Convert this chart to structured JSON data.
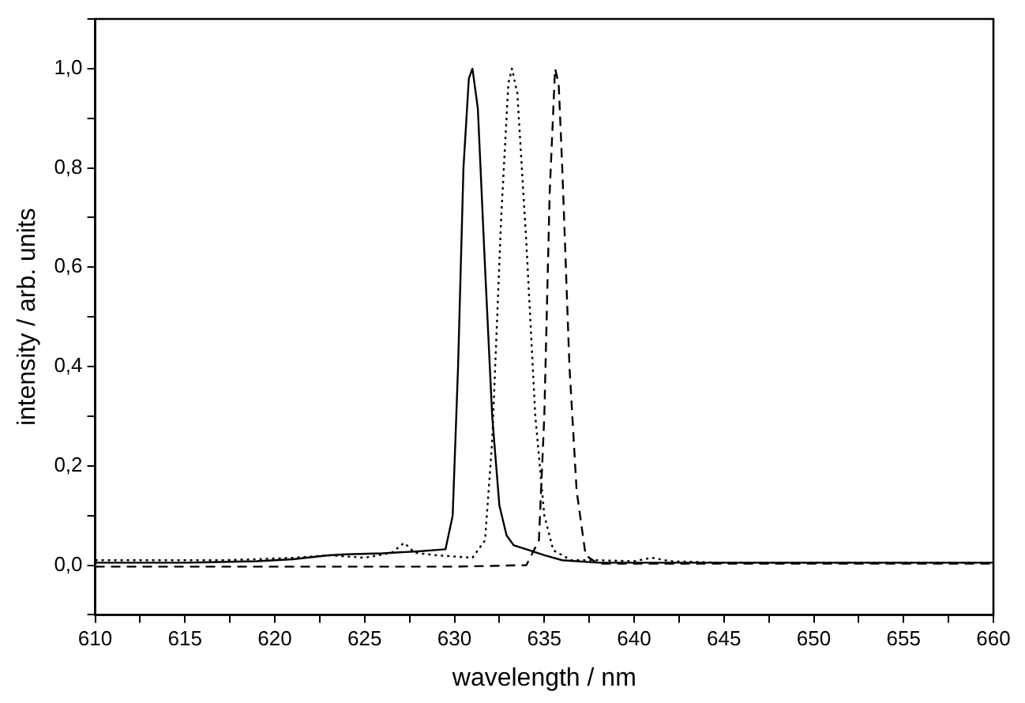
{
  "chart_data": {
    "type": "line",
    "xlabel": "wavelength / nm",
    "ylabel": "intensity / arb. units",
    "xlim": [
      610,
      660
    ],
    "ylim": [
      -0.1,
      1.1
    ],
    "xticks": [
      610,
      {
        "value": 612.5,
        "label": null
      },
      615,
      {
        "value": 617.5,
        "label": null
      },
      620,
      {
        "value": 622.5,
        "label": null
      },
      625,
      {
        "value": 627.5,
        "label": null
      },
      630,
      {
        "value": 632.5,
        "label": null
      },
      635,
      {
        "value": 637.5,
        "label": null
      },
      640,
      {
        "value": 642.5,
        "label": null
      },
      645,
      {
        "value": 647.5,
        "label": null
      },
      650,
      {
        "value": 652.5,
        "label": null
      },
      655,
      {
        "value": 657.5,
        "label": null
      },
      660
    ],
    "yticks": [
      {
        "value": -0.1,
        "label": null
      },
      {
        "value": 0,
        "label": "0,0"
      },
      {
        "value": 0.1,
        "label": null
      },
      {
        "value": 0.2,
        "label": "0,2"
      },
      {
        "value": 0.3,
        "label": null
      },
      {
        "value": 0.4,
        "label": "0,4"
      },
      {
        "value": 0.5,
        "label": null
      },
      {
        "value": 0.6,
        "label": "0,6"
      },
      {
        "value": 0.7,
        "label": null
      },
      {
        "value": 0.8,
        "label": "0,8"
      },
      {
        "value": 0.9,
        "label": null
      },
      {
        "value": 1,
        "label": "1,0"
      },
      {
        "value": 1.1,
        "label": null
      }
    ],
    "grid": false,
    "legend": false,
    "marker": "none",
    "series": [
      {
        "color": "#000000",
        "line_style": "solid",
        "x": [
          610,
          615,
          619,
          621,
          623,
          624,
          626,
          628,
          629.5,
          629.9,
          630.2,
          630.5,
          630.8,
          631,
          631.3,
          631.7,
          632.1,
          632.5,
          632.9,
          633.3,
          634,
          635,
          636,
          638,
          645,
          660
        ],
        "values": [
          0.005,
          0.005,
          0.008,
          0.012,
          0.02,
          0.022,
          0.024,
          0.028,
          0.032,
          0.1,
          0.4,
          0.8,
          0.98,
          1.0,
          0.92,
          0.6,
          0.3,
          0.12,
          0.06,
          0.04,
          0.032,
          0.02,
          0.01,
          0.005,
          0.005,
          0.005
        ]
      },
      {
        "color": "#000000",
        "line_style": "dotted",
        "x": [
          610,
          617,
          619,
          621,
          623,
          625,
          626.5,
          627.2,
          627.8,
          629,
          631,
          631.7,
          632.1,
          632.6,
          633,
          633.2,
          633.5,
          634,
          634.5,
          635,
          635.5,
          636.5,
          638,
          640,
          641,
          642,
          645,
          660
        ],
        "values": [
          0.01,
          0.01,
          0.012,
          0.015,
          0.02,
          0.015,
          0.025,
          0.045,
          0.025,
          0.02,
          0.015,
          0.05,
          0.25,
          0.7,
          0.97,
          1.0,
          0.95,
          0.65,
          0.3,
          0.1,
          0.03,
          0.01,
          0.01,
          0.008,
          0.015,
          0.008,
          0.005,
          0.005
        ]
      },
      {
        "color": "#000000",
        "line_style": "dashed",
        "x": [
          610,
          630,
          634,
          634.7,
          635,
          635.3,
          635.6,
          635.8,
          636,
          636.4,
          636.8,
          637.3,
          638,
          645,
          660
        ],
        "values": [
          -0.003,
          -0.003,
          0.0,
          0.05,
          0.3,
          0.75,
          1.0,
          0.97,
          0.8,
          0.4,
          0.15,
          0.02,
          0.003,
          0.003,
          0.003
        ]
      }
    ]
  }
}
